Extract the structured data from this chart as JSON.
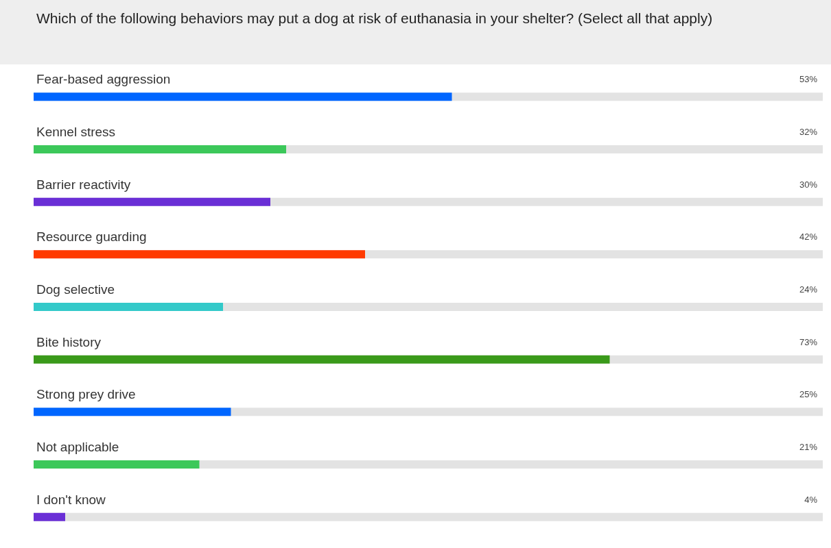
{
  "chart_data": {
    "type": "bar",
    "orientation": "horizontal",
    "title": "Which of the following behaviors may put a dog at risk of euthanasia in your shelter? (Select all that apply)",
    "categories": [
      "Fear-based aggression",
      "Kennel stress",
      "Barrier reactivity",
      "Resource guarding",
      "Dog selective",
      "Bite history",
      "Strong prey drive",
      "Not applicable",
      "I don't know"
    ],
    "values": [
      53,
      32,
      30,
      42,
      24,
      73,
      25,
      21,
      4
    ],
    "value_labels": [
      "53%",
      "32%",
      "30%",
      "42%",
      "24%",
      "73%",
      "25%",
      "21%",
      "4%"
    ],
    "colors": [
      "#0066ff",
      "#3cc85a",
      "#6a2fd6",
      "#ff3a00",
      "#33c9c9",
      "#3a9a1a",
      "#0066ff",
      "#3cc85a",
      "#6a2fd6"
    ],
    "xlim": [
      0,
      100
    ],
    "tick_labels": false
  }
}
